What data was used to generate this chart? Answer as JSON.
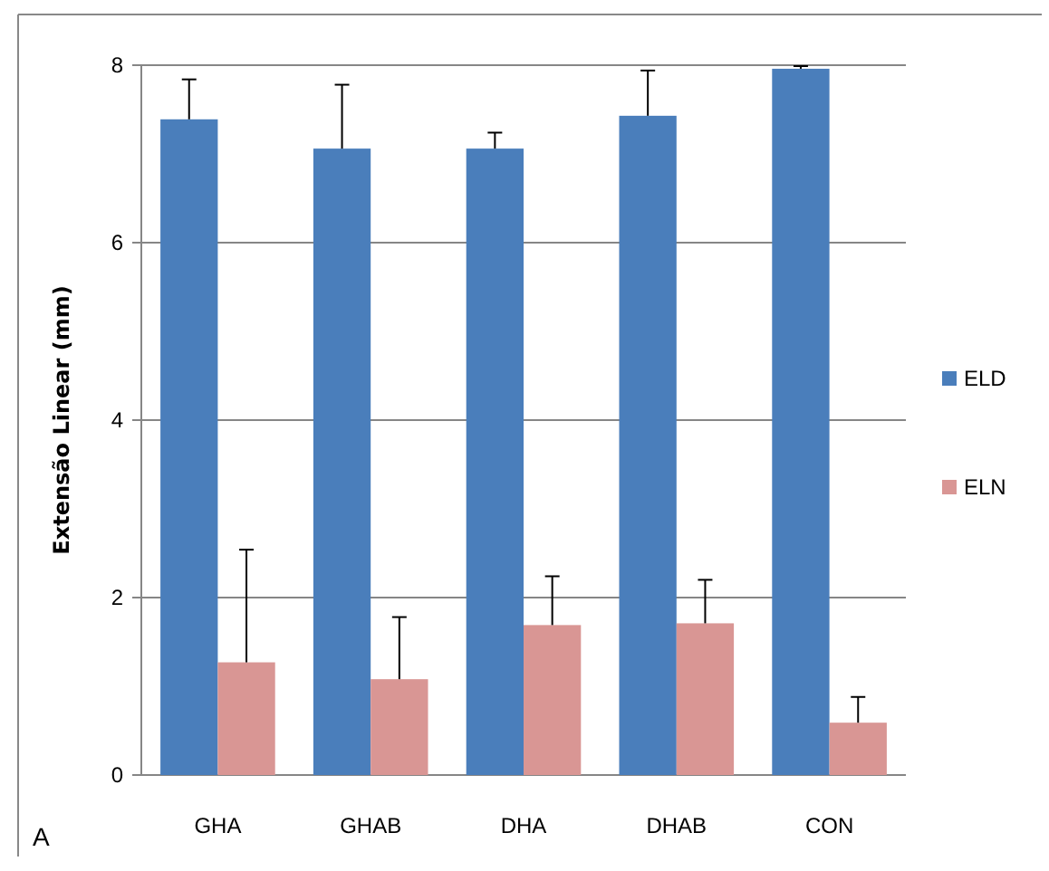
{
  "chart_data": {
    "type": "bar",
    "ylabel": "Extensão Linear  (mm)",
    "categories": [
      "GHA",
      "GHAB",
      "DHA",
      "DHAB",
      "CON"
    ],
    "series": [
      {
        "name": "ELD",
        "color": "#4a7ebb",
        "values": [
          7.39,
          7.06,
          7.06,
          7.43,
          7.96
        ],
        "errors": [
          0.45,
          0.72,
          0.18,
          0.51,
          0.03
        ]
      },
      {
        "name": "ELN",
        "color": "#d99694",
        "values": [
          1.27,
          1.08,
          1.69,
          1.71,
          0.59
        ],
        "errors": [
          1.27,
          0.7,
          0.55,
          0.49,
          0.29
        ]
      }
    ],
    "ylim": [
      0,
      8
    ],
    "yticks": [
      0,
      2,
      4,
      6,
      8
    ],
    "grid": "y",
    "legend": "right",
    "annotations": [
      "A"
    ]
  }
}
